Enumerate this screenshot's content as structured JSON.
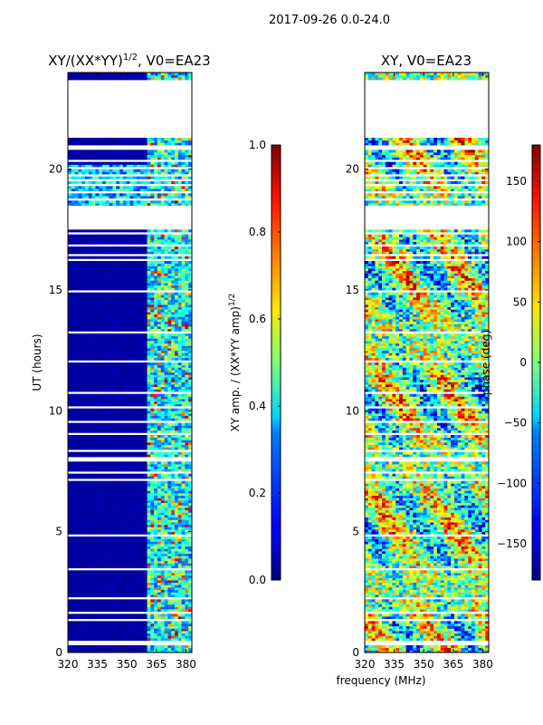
{
  "chart_data": {
    "suptitle": "2017-09-26 0.0-24.0",
    "xlabel_shared": "frequency (MHz)",
    "panels": [
      {
        "type": "heatmap",
        "title": "XY/(XX*YY)^1/2, V0=EA23",
        "title_main": "XY/(XX*YY)",
        "title_exp": "1/2",
        "title_tail": ", V0=EA23",
        "ylabel": "UT (hours)",
        "xlim": [
          320,
          383
        ],
        "ylim": [
          0,
          24
        ],
        "xticks": [
          320,
          335,
          350,
          365,
          380
        ],
        "yticks": [
          0,
          5,
          10,
          15,
          20
        ],
        "colormap": "jet",
        "colorbar": {
          "label": "XY amp. / (XX*YY amp)^1/2",
          "label_main": "XY amp. / (XX*YY amp)",
          "label_exp": "1/2",
          "range": [
            0.0,
            1.0
          ],
          "ticks": [
            "0.0",
            "0.2",
            "0.4",
            "0.6",
            "0.8",
            "1.0"
          ]
        }
      },
      {
        "type": "heatmap",
        "title": "XY, V0=EA23",
        "xlim": [
          320,
          383
        ],
        "ylim": [
          0,
          24
        ],
        "xticks": [
          320,
          335,
          350,
          365,
          380
        ],
        "yticks": [
          0,
          5,
          10,
          15,
          20
        ],
        "colormap": "jet",
        "colorbar": {
          "label": "phase (deg)",
          "range": [
            -180,
            180
          ],
          "ticks": [
            "-150",
            "-100",
            "-50",
            "0",
            "50",
            "100",
            "150"
          ]
        }
      }
    ],
    "data_gaps_hours": [
      [
        0.35,
        0.45
      ],
      [
        1.35,
        1.45
      ],
      [
        1.6,
        1.7
      ],
      [
        2.2,
        2.3
      ],
      [
        3.45,
        3.5
      ],
      [
        4.85,
        4.9
      ],
      [
        5.5,
        5.55
      ],
      [
        7.15,
        7.2
      ],
      [
        7.4,
        7.45
      ],
      [
        7.95,
        8.05
      ],
      [
        8.3,
        8.45
      ],
      [
        9.0,
        9.05
      ],
      [
        9.5,
        9.6
      ],
      [
        10.1,
        10.15
      ],
      [
        10.7,
        10.75
      ],
      [
        11.4,
        11.45
      ],
      [
        12.0,
        12.05
      ],
      [
        12.3,
        12.35
      ],
      [
        12.8,
        12.85
      ],
      [
        13.2,
        13.25
      ],
      [
        13.4,
        13.45
      ],
      [
        14.3,
        14.35
      ],
      [
        14.9,
        15.0
      ],
      [
        15.8,
        15.85
      ],
      [
        16.2,
        16.25
      ],
      [
        16.4,
        16.5
      ],
      [
        16.8,
        16.85
      ],
      [
        17.3,
        17.4
      ],
      [
        17.55,
        18.45
      ],
      [
        18.6,
        18.65
      ],
      [
        18.75,
        18.8
      ],
      [
        19.0,
        19.05
      ],
      [
        19.3,
        19.35
      ],
      [
        19.5,
        19.55
      ],
      [
        19.75,
        19.8
      ],
      [
        20.0,
        20.05
      ],
      [
        20.35,
        20.45
      ],
      [
        20.6,
        20.65
      ],
      [
        20.85,
        21.0
      ],
      [
        21.35,
        21.4
      ],
      [
        21.45,
        21.85
      ],
      [
        21.9,
        23.55
      ],
      [
        23.65,
        23.7
      ]
    ]
  }
}
